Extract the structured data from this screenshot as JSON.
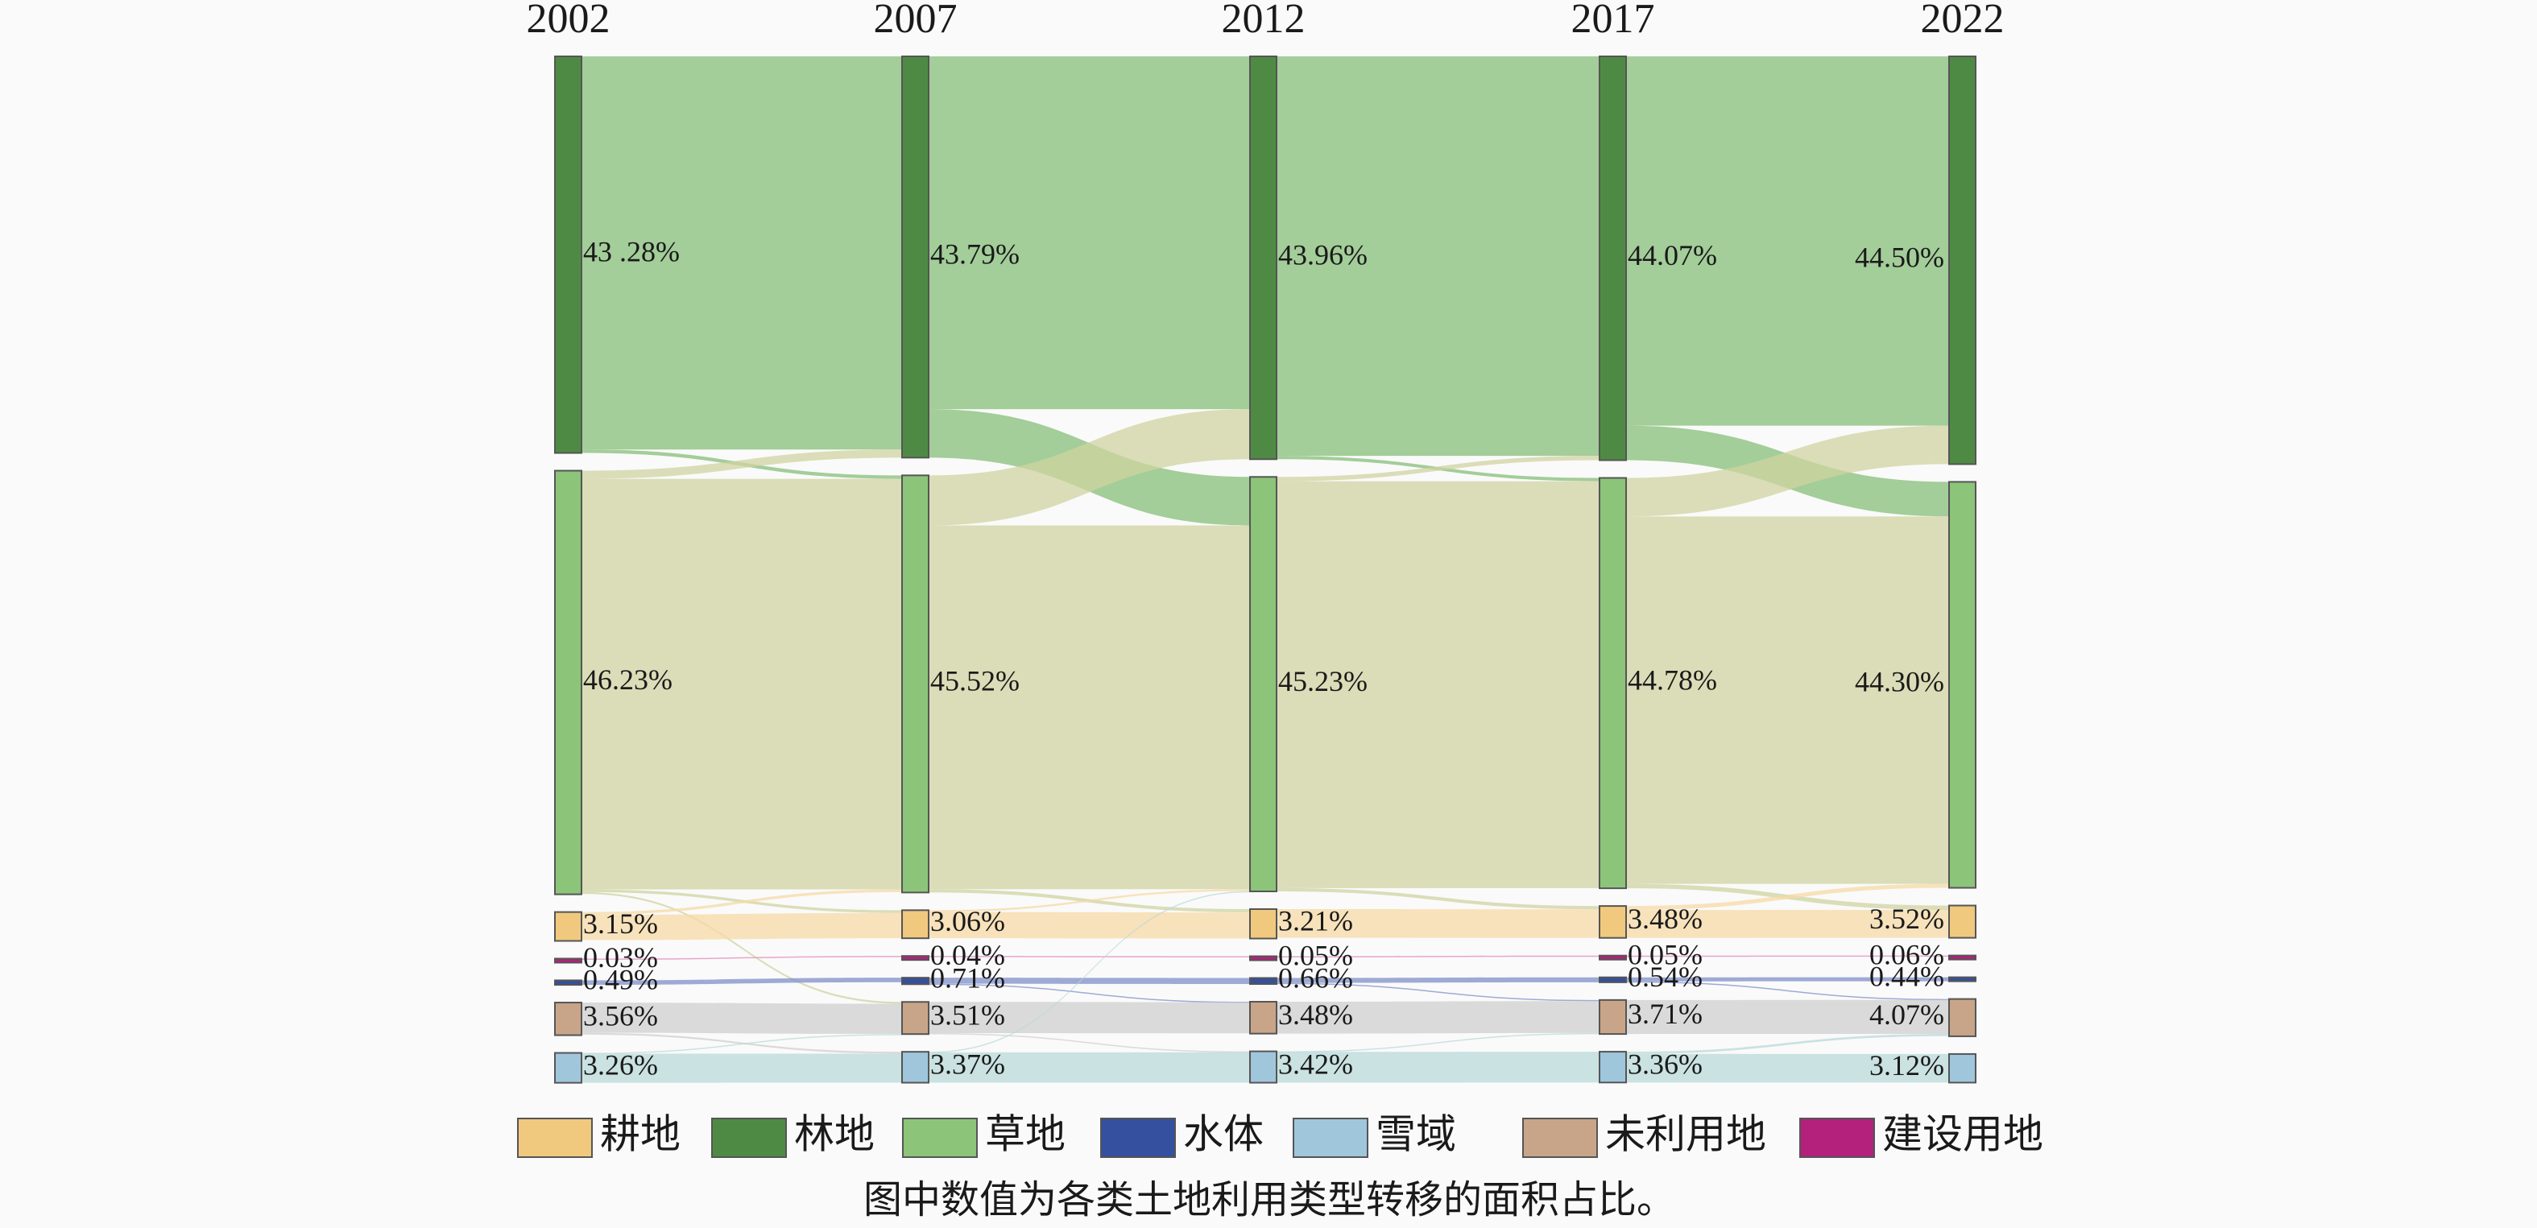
{
  "chart_data": {
    "type": "sankey",
    "categories": [
      "2002",
      "2007",
      "2012",
      "2017",
      "2022"
    ],
    "series": [
      {
        "name": "耕地",
        "color": "#f0c97f",
        "link_color": "#f5d9a6",
        "values": [
          3.15,
          3.06,
          3.21,
          3.48,
          3.52
        ],
        "value_labels": [
          "3.15%",
          "3.06%",
          "3.21%",
          "3.48%",
          "3.52%"
        ]
      },
      {
        "name": "林地",
        "color": "#4f8a45",
        "link_color": "#86bd78",
        "values": [
          43.28,
          43.79,
          43.96,
          44.07,
          44.5
        ],
        "value_labels": [
          "43 .28%",
          "43.79%",
          "43.96%",
          "44.07%",
          "44.50%"
        ]
      },
      {
        "name": "草地",
        "color": "#8cc47a",
        "link_color": "#cfd3a0",
        "values": [
          46.23,
          45.52,
          45.23,
          44.78,
          44.3
        ],
        "value_labels": [
          "46.23%",
          "45.52%",
          "45.23%",
          "44.78%",
          "44.30%"
        ]
      },
      {
        "name": "水体",
        "color": "#34509e",
        "link_color": "#7f8fc8",
        "values": [
          0.49,
          0.71,
          0.66,
          0.54,
          0.44
        ],
        "value_labels": [
          "0.49%",
          "0.71%",
          "0.66%",
          "0.54%",
          "0.44%"
        ]
      },
      {
        "name": "雪域",
        "color": "#a0c6dc",
        "link_color": "#b9dad8",
        "values": [
          3.26,
          3.37,
          3.42,
          3.36,
          3.12
        ],
        "value_labels": [
          "3.26%",
          "3.37%",
          "3.42%",
          "3.36%",
          "3.12%"
        ]
      },
      {
        "name": "未利用地",
        "color": "#c8a588",
        "link_color": "#cfcfcf",
        "values": [
          3.56,
          3.51,
          3.48,
          3.71,
          4.07
        ],
        "value_labels": [
          "3.56%",
          "3.51%",
          "3.48%",
          "3.71%",
          "4.07%"
        ]
      },
      {
        "name": "建设用地",
        "color": "#b3217d",
        "link_color": "#e08ab8",
        "values": [
          0.03,
          0.04,
          0.05,
          0.05,
          0.06
        ],
        "value_labels": [
          "0.03%",
          "0.04%",
          "0.05%",
          "0.05%",
          "0.06%"
        ]
      }
    ],
    "stack_order": [
      1,
      2,
      0,
      6,
      3,
      5,
      4
    ],
    "flows": [
      [
        [
          1,
          1,
          42.9
        ],
        [
          1,
          2,
          0.38
        ],
        [
          2,
          1,
          0.89
        ],
        [
          2,
          2,
          44.8
        ],
        [
          2,
          0,
          0.3
        ],
        [
          2,
          5,
          0.2
        ],
        [
          0,
          2,
          0.3
        ],
        [
          0,
          0,
          2.76
        ],
        [
          6,
          6,
          0.03
        ],
        [
          3,
          3,
          0.49
        ],
        [
          5,
          5,
          3.3
        ],
        [
          5,
          4,
          0.2
        ],
        [
          4,
          4,
          3.17
        ],
        [
          4,
          5,
          0.09
        ]
      ],
      [
        [
          1,
          1,
          38.5
        ],
        [
          1,
          2,
          5.29
        ],
        [
          2,
          1,
          5.46
        ],
        [
          2,
          2,
          39.7
        ],
        [
          2,
          0,
          0.36
        ],
        [
          0,
          0,
          2.85
        ],
        [
          0,
          2,
          0.21
        ],
        [
          6,
          6,
          0.04
        ],
        [
          3,
          3,
          0.66
        ],
        [
          3,
          5,
          0.05
        ],
        [
          5,
          5,
          3.4
        ],
        [
          5,
          4,
          0.11
        ],
        [
          4,
          4,
          3.31
        ],
        [
          4,
          2,
          0.06
        ]
      ],
      [
        [
          1,
          1,
          43.6
        ],
        [
          1,
          2,
          0.36
        ],
        [
          2,
          1,
          0.47
        ],
        [
          2,
          2,
          44.4
        ],
        [
          2,
          0,
          0.36
        ],
        [
          0,
          0,
          3.12
        ],
        [
          6,
          6,
          0.05
        ],
        [
          3,
          3,
          0.54
        ],
        [
          3,
          5,
          0.12
        ],
        [
          5,
          5,
          3.48
        ],
        [
          4,
          4,
          3.36
        ],
        [
          4,
          5,
          0.06
        ]
      ],
      [
        [
          1,
          1,
          40.3
        ],
        [
          1,
          2,
          3.77
        ],
        [
          2,
          1,
          4.2
        ],
        [
          2,
          2,
          40.1
        ],
        [
          2,
          0,
          0.48
        ],
        [
          0,
          0,
          3.04
        ],
        [
          0,
          2,
          0.44
        ],
        [
          6,
          6,
          0.05
        ],
        [
          3,
          3,
          0.44
        ],
        [
          3,
          5,
          0.1
        ],
        [
          5,
          5,
          3.71
        ],
        [
          4,
          4,
          3.12
        ],
        [
          4,
          5,
          0.24
        ]
      ]
    ],
    "note": "图中数值为各类土地利用类型转移的面积占比。"
  }
}
